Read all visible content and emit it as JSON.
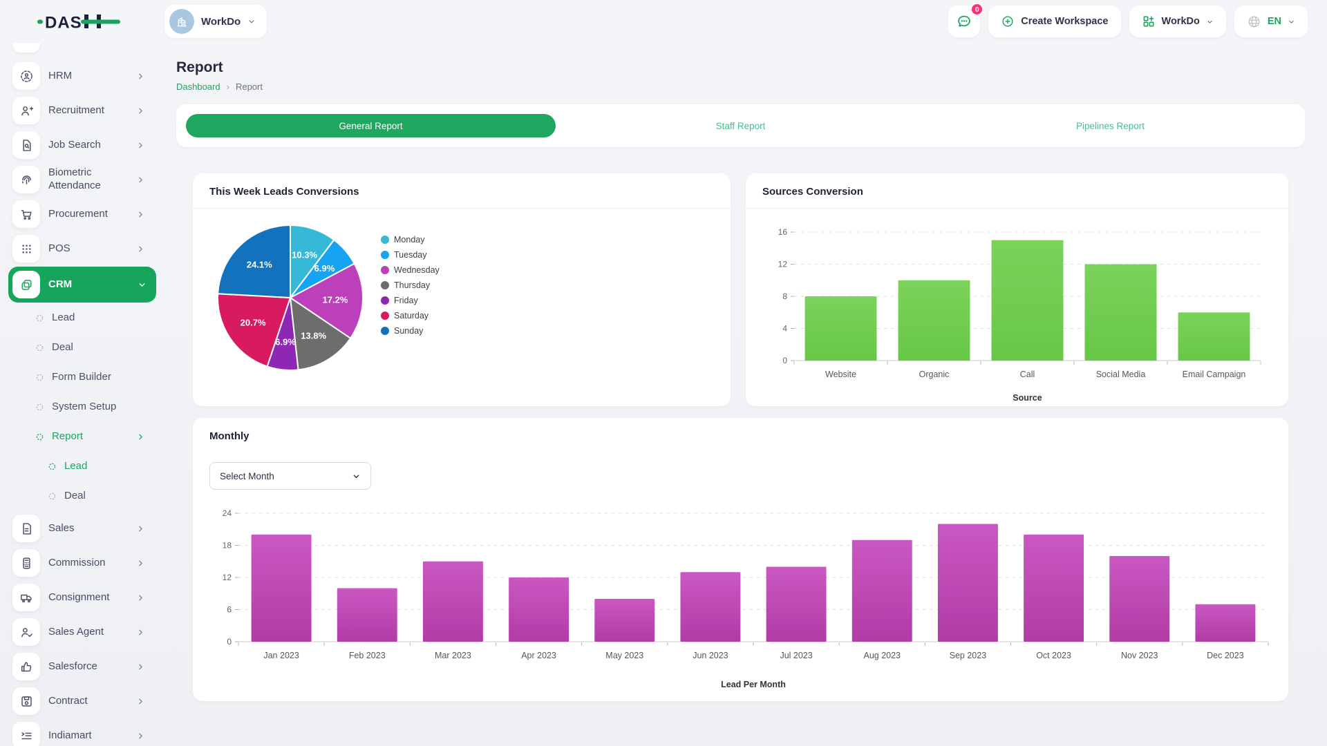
{
  "brand": {
    "name": "DASH",
    "text_part": "DAS"
  },
  "header": {
    "workspace_label": "WorkDo",
    "messages_badge": "0",
    "create_workspace_label": "Create Workspace",
    "apps_label": "WorkDo",
    "language": "EN"
  },
  "page": {
    "title": "Report",
    "breadcrumb_root": "Dashboard",
    "breadcrumb_current": "Report"
  },
  "tabs": [
    {
      "label": "General Report",
      "active": true
    },
    {
      "label": "Staff Report",
      "active": false
    },
    {
      "label": "Pipelines Report",
      "active": false
    }
  ],
  "sidebar": {
    "items": [
      {
        "label": "HRM",
        "icon": "hrm-icon",
        "level": 0
      },
      {
        "label": "Recruitment",
        "icon": "recruitment-icon",
        "level": 0
      },
      {
        "label": "Job Search",
        "icon": "job-search-icon",
        "level": 0
      },
      {
        "label": "Biometric Attendance",
        "icon": "fingerprint-icon",
        "level": 0
      },
      {
        "label": "Procurement",
        "icon": "procurement-cart-icon",
        "level": 0
      },
      {
        "label": "POS",
        "icon": "pos-grid-icon",
        "level": 0
      },
      {
        "label": "CRM",
        "icon": "crm-icon",
        "level": 0,
        "active": true,
        "expanded": true
      },
      {
        "label": "Lead",
        "level": 1
      },
      {
        "label": "Deal",
        "level": 1
      },
      {
        "label": "Form Builder",
        "level": 1
      },
      {
        "label": "System Setup",
        "level": 1
      },
      {
        "label": "Report",
        "level": 1,
        "active": true,
        "chevron": true
      },
      {
        "label": "Lead",
        "level": 2,
        "active": true
      },
      {
        "label": "Deal",
        "level": 2
      },
      {
        "label": "Sales",
        "icon": "sales-document-icon",
        "level": 0
      },
      {
        "label": "Commission",
        "icon": "commission-calculator-icon",
        "level": 0
      },
      {
        "label": "Consignment",
        "icon": "consignment-truck-icon",
        "level": 0
      },
      {
        "label": "Sales Agent",
        "icon": "sales-agent-icon",
        "level": 0
      },
      {
        "label": "Salesforce",
        "icon": "salesforce-thumbsup-icon",
        "level": 0
      },
      {
        "label": "Contract",
        "icon": "contract-floppy-icon",
        "level": 0
      },
      {
        "label": "Indiamart",
        "icon": "indiamart-list-icon",
        "level": 0
      }
    ]
  },
  "cards": {
    "week_title": "This Week Leads Conversions",
    "sources_title": "Sources Conversion",
    "monthly_title": "Monthly",
    "monthly_select": "Select Month"
  },
  "colors": {
    "accent_green": "#16a65b",
    "link_green": "#1ba65e",
    "tab_text_green": "#49bd8c",
    "badge_pink": "#fb2f72",
    "navy": "#19213d"
  },
  "chart_data": [
    {
      "id": "week-pie",
      "type": "pie",
      "title": "This Week Leads Conversions",
      "labels": [
        "Monday",
        "Tuesday",
        "Wednesday",
        "Thursday",
        "Friday",
        "Saturday",
        "Sunday"
      ],
      "values": [
        10.3,
        6.9,
        17.2,
        13.8,
        6.9,
        20.7,
        24.1
      ],
      "unit": "%",
      "colors": [
        "#35b9d6",
        "#15a3f2",
        "#bc3fbc",
        "#6d6d6d",
        "#8f27b5",
        "#d81b60",
        "#1272bd"
      ],
      "legend_position": "right"
    },
    {
      "id": "sources-bar",
      "type": "bar",
      "title": "Sources Conversion",
      "categories": [
        "Website",
        "Organic",
        "Call",
        "Social Media",
        "Email Campaign"
      ],
      "values": [
        8,
        10,
        15,
        12,
        6
      ],
      "xlabel": "Source",
      "ylim": [
        0,
        16
      ],
      "yticks": [
        0,
        4,
        8,
        12,
        16
      ],
      "grid": "dashed",
      "bar_color": "#7bd35a",
      "bar_color_dark": "#67c747"
    },
    {
      "id": "monthly-bar",
      "type": "bar",
      "title": "Lead Per Month",
      "categories": [
        "Jan 2023",
        "Feb 2023",
        "Mar 2023",
        "Apr 2023",
        "May 2023",
        "Jun 2023",
        "Jul 2023",
        "Aug 2023",
        "Sep 2023",
        "Oct 2023",
        "Nov 2023",
        "Dec 2023"
      ],
      "values": [
        20,
        10,
        15,
        12,
        8,
        13,
        14,
        19,
        22,
        20,
        16,
        7
      ],
      "xlabel": "Lead Per Month",
      "ylim": [
        0,
        24
      ],
      "yticks": [
        0,
        6,
        12,
        18,
        24
      ],
      "grid": "dashed",
      "bar_color": "#ca58c2",
      "bar_color_dark": "#b23ba6"
    }
  ]
}
